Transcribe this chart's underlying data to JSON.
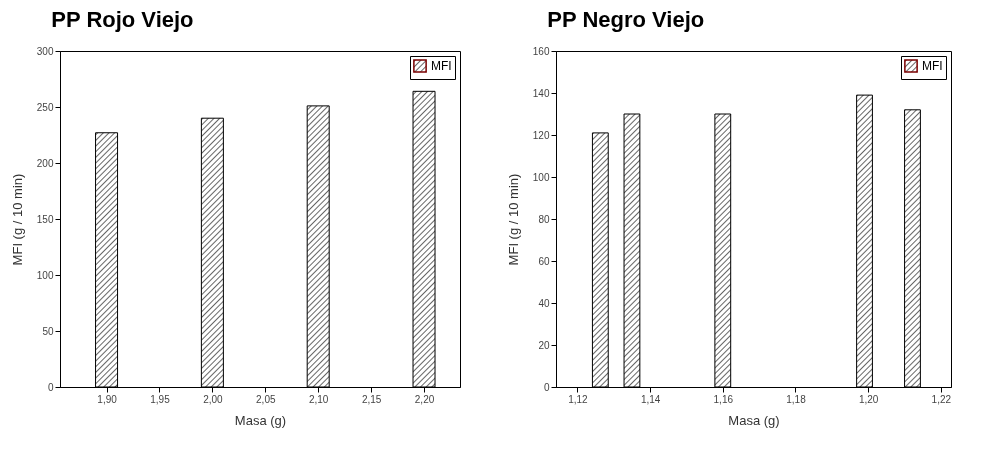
{
  "chart_data": [
    {
      "type": "bar",
      "title": "PP Rojo Viejo",
      "xlabel": "Masa (g)",
      "ylabel": "MFI (g / 10 min)",
      "x": [
        1.9,
        2.0,
        2.1,
        2.2
      ],
      "series": [
        {
          "name": "MFI",
          "color": "#000000",
          "values": [
            227,
            240,
            251,
            264
          ]
        }
      ],
      "xlim": [
        1.856,
        2.234
      ],
      "xticks": [
        {
          "value": 1.9,
          "label": "1,90"
        },
        {
          "value": 1.95,
          "label": "1,95"
        },
        {
          "value": 2.0,
          "label": "2,00"
        },
        {
          "value": 2.05,
          "label": "2,05"
        },
        {
          "value": 2.1,
          "label": "2,10"
        },
        {
          "value": 2.15,
          "label": "2,15"
        },
        {
          "value": 2.2,
          "label": "2,20"
        }
      ],
      "ylim": [
        0,
        300
      ],
      "yticks": [
        0,
        50,
        100,
        150,
        200,
        250,
        300
      ],
      "legend": "top right",
      "grid": false
    },
    {
      "type": "bar",
      "title": "PP Negro Viejo",
      "xlabel": "Masa (g)",
      "ylabel": "MFI (g / 10 min)",
      "x": [
        1.1263,
        1.135,
        1.16,
        1.199,
        1.2122
      ],
      "series": [
        {
          "name": "MFI",
          "color": "#000000",
          "values": [
            121,
            130,
            130,
            139,
            132
          ]
        }
      ],
      "xlim": [
        1.1141,
        1.2228
      ],
      "xticks": [
        {
          "value": 1.12,
          "label": "1,12"
        },
        {
          "value": 1.14,
          "label": "1,14"
        },
        {
          "value": 1.16,
          "label": "1,16"
        },
        {
          "value": 1.18,
          "label": "1,18"
        },
        {
          "value": 1.2,
          "label": "1,20"
        },
        {
          "value": 1.22,
          "label": "1,22"
        }
      ],
      "ylim": [
        0,
        160
      ],
      "yticks": [
        0,
        20,
        40,
        60,
        80,
        100,
        120,
        140,
        160
      ],
      "legend": "top right",
      "grid": false
    }
  ]
}
